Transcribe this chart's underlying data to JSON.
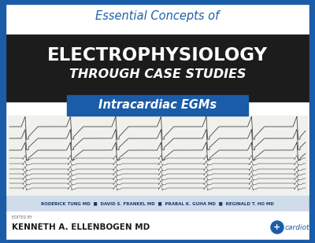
{
  "bg_color": "#ffffff",
  "border_color": "#1a5ca8",
  "top_italic_text": "Essential Concepts of",
  "top_italic_color": "#2060a8",
  "black_band_color": "#1c1c1c",
  "main_title_line1": "ELECTROPHYSIOLOGY",
  "main_title_line2": "THROUGH CASE STUDIES",
  "main_title_color": "#ffffff",
  "subtitle_band_color": "#1a5ca8",
  "subtitle_text": "Intracardiac EGMs",
  "subtitle_text_color": "#ffffff",
  "authors_band_color": "#d0dcea",
  "authors_text": "RODERICK TUNG MD  ■  DAVID S. FRANKEL MD  ■  PRABAL K. GUHA MD  ■  REGINALD T. HO MD",
  "authors_color": "#1a3a6b",
  "edited_by_label": "EDITED BY",
  "editor_name": "KENNETH A. ELLENBOGEN",
  "editor_suffix": " MD",
  "editor_color": "#1a1a1a",
  "cardiotext_color": "#1a5ca8",
  "cardiotext_label": "cardiotext",
  "left_stripe_color": "#1a5ca8",
  "ecg_bg_color": "#f0f0ec",
  "ecg_line_color": "#444444"
}
